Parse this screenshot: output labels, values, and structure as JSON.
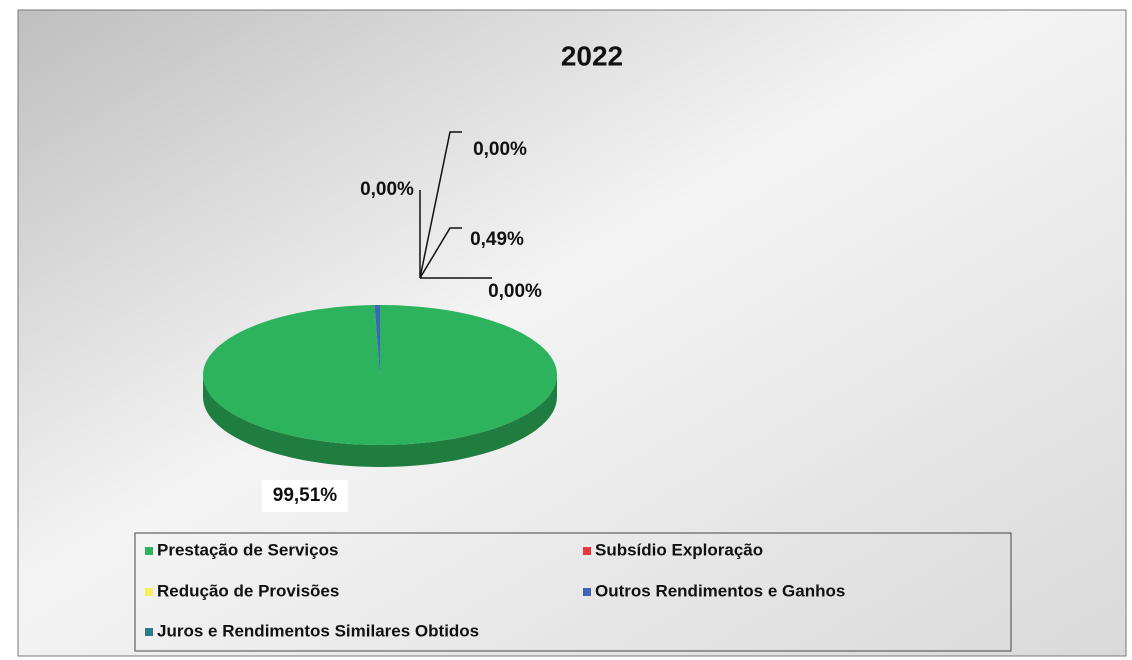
{
  "chart_data": {
    "type": "pie",
    "title": "2022",
    "categories": [
      "Prestação de Serviços",
      "Subsídio Exploração",
      "Redução de Provisões",
      "Outros Rendimentos e Ganhos",
      "Juros e Rendimentos Similares Obtidos"
    ],
    "values": [
      99.51,
      0,
      0,
      0.49,
      0
    ],
    "value_labels": [
      "99,51%",
      "0,00%",
      "0,00%",
      "0,49%",
      "0,00%"
    ],
    "colors": [
      "#2db35d",
      "#e8353f",
      "#f4ef5c",
      "#3b67b9",
      "#2e7b8c"
    ],
    "legend": "bottom"
  }
}
